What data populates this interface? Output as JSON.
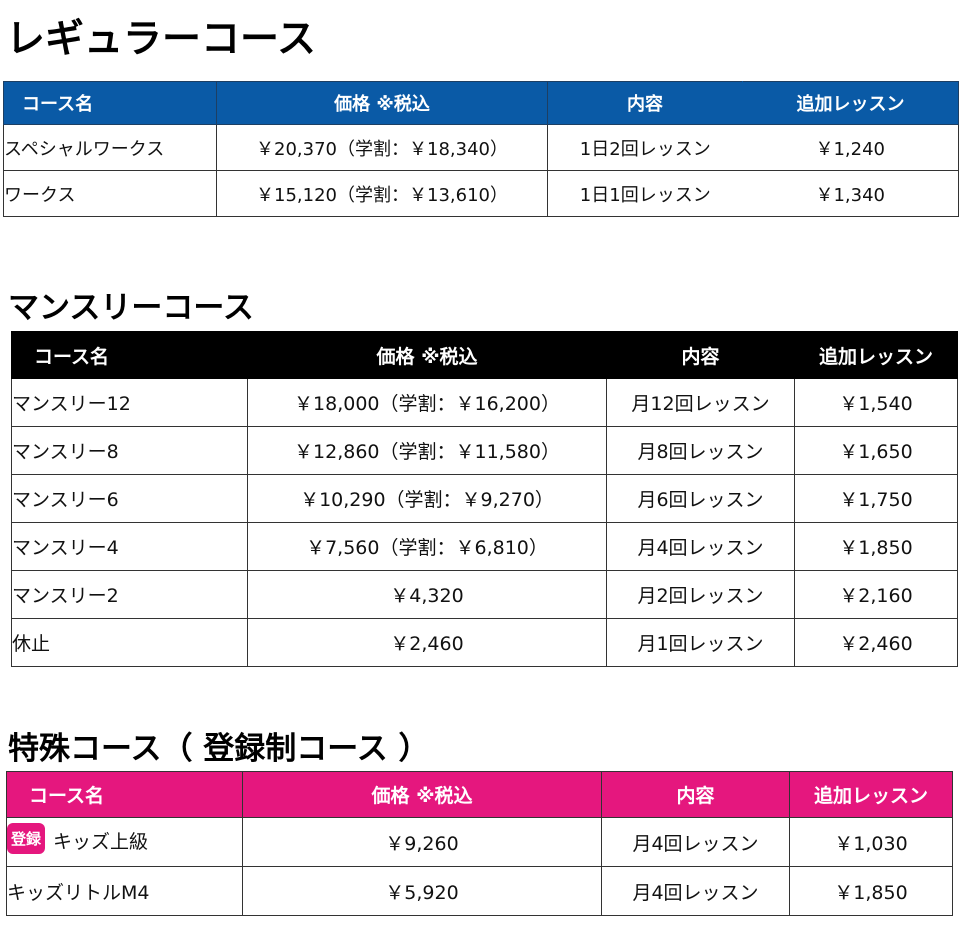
{
  "sections": {
    "regular": {
      "title": "レギュラーコース",
      "headers": [
        "コース名",
        "価格 ※税込",
        "内容",
        "追加レッスン"
      ],
      "rows": [
        {
          "name": "スペシャルワークス",
          "price": "￥20,370（学割：￥18,340）",
          "content": "1日2回レッスン",
          "extra": "￥1,240"
        },
        {
          "name": "ワークス",
          "price": "￥15,120（学割：￥13,610）",
          "content": "1日1回レッスン",
          "extra": "￥1,340"
        }
      ]
    },
    "monthly": {
      "title": "マンスリーコース",
      "headers": [
        "コース名",
        "価格 ※税込",
        "内容",
        "追加レッスン"
      ],
      "rows": [
        {
          "name": "マンスリー12",
          "price": "￥18,000（学割：￥16,200）",
          "content": "月12回レッスン",
          "extra": "￥1,540"
        },
        {
          "name": "マンスリー8",
          "price": "￥12,860（学割：￥11,580）",
          "content": "月8回レッスン",
          "extra": "￥1,650"
        },
        {
          "name": "マンスリー6",
          "price": "￥10,290（学割：￥9,270）",
          "content": "月6回レッスン",
          "extra": "￥1,750"
        },
        {
          "name": "マンスリー4",
          "price": "￥7,560（学割：￥6,810）",
          "content": "月4回レッスン",
          "extra": "￥1,850"
        },
        {
          "name": "マンスリー2",
          "price": "￥4,320",
          "content": "月2回レッスン",
          "extra": "￥2,160"
        },
        {
          "name": "休止",
          "price": "￥2,460",
          "content": "月1回レッスン",
          "extra": "￥2,460"
        }
      ]
    },
    "special": {
      "title": "特殊コース（ 登録制コース ）",
      "headers": [
        "コース名",
        "価格 ※税込",
        "内容",
        "追加レッスン"
      ],
      "rows": [
        {
          "badge": "登録",
          "name": "キッズ上級",
          "price": "￥9,260",
          "content": "月4回レッスン",
          "extra": "￥1,030"
        },
        {
          "name": "キッズリトルM4",
          "price": "￥5,920",
          "content": "月4回レッスン",
          "extra": "￥1,850"
        }
      ]
    }
  },
  "colors": {
    "regular_header": "#0a5aa6",
    "monthly_header": "#000000",
    "special_header": "#e5177e"
  }
}
